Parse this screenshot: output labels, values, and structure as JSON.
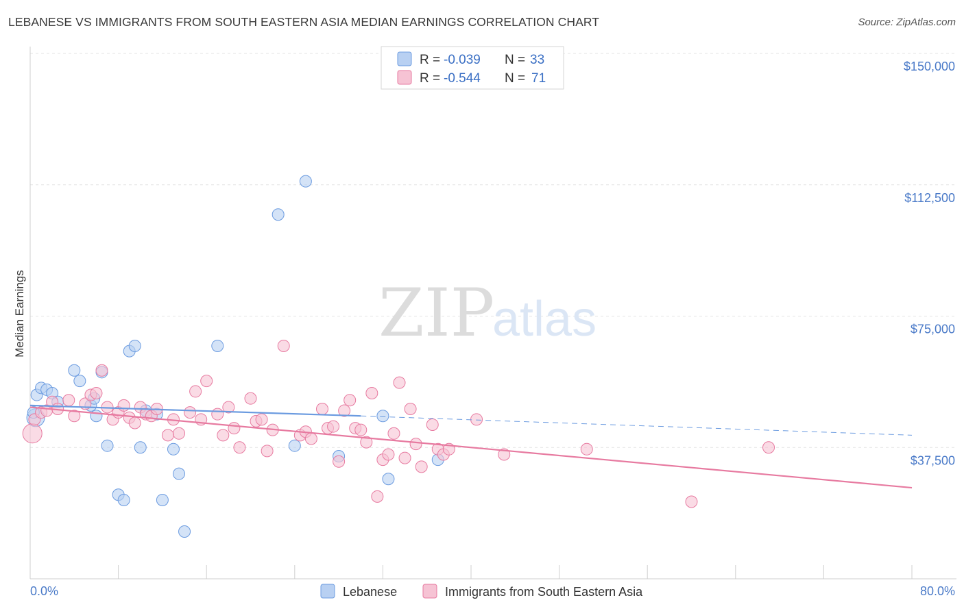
{
  "title": "LEBANESE VS IMMIGRANTS FROM SOUTH EASTERN ASIA MEDIAN EARNINGS CORRELATION CHART",
  "source": "Source: ZipAtlas.com",
  "watermark": {
    "zip": "ZIP",
    "atlas": "atlas"
  },
  "chart_data": {
    "type": "scatter",
    "ylabel": "Median Earnings",
    "xlim": [
      0,
      80
    ],
    "ylim": [
      0,
      155000
    ],
    "y_ticks": [
      {
        "value": 37500,
        "label": "$37,500"
      },
      {
        "value": 75000,
        "label": "$75,000"
      },
      {
        "value": 112500,
        "label": "$112,500"
      },
      {
        "value": 150000,
        "label": "$150,000"
      }
    ],
    "x_tick_labels": {
      "min": "0.0%",
      "max": "80.0%"
    },
    "grid": true,
    "legend": {
      "placement": "top-center",
      "rows": [
        {
          "r_label": "R = ",
          "r_value": "-0.039",
          "n_label": "N = ",
          "n_value": "33"
        },
        {
          "r_label": "R = ",
          "r_value": "-0.544",
          "n_label": "N = ",
          "n_value": "71"
        }
      ]
    },
    "series": [
      {
        "name": "Lebanese",
        "color": "#6b9be0",
        "fill": "#b8d0f2",
        "trend": {
          "x0": 0,
          "y0": 49500,
          "x1": 30,
          "y1": 46500,
          "dash_to_x": 80,
          "dash_to_y": 41000
        },
        "points": [
          [
            0.5,
            46000
          ],
          [
            0.6,
            52500
          ],
          [
            1.0,
            54500
          ],
          [
            1.5,
            54000
          ],
          [
            2.0,
            53000
          ],
          [
            2.5,
            50500
          ],
          [
            4.0,
            59500
          ],
          [
            4.5,
            56500
          ],
          [
            5.5,
            49500
          ],
          [
            5.8,
            51500
          ],
          [
            6.0,
            46500
          ],
          [
            6.5,
            59000
          ],
          [
            7.0,
            38000
          ],
          [
            8.0,
            24000
          ],
          [
            8.5,
            22500
          ],
          [
            9.0,
            65000
          ],
          [
            9.5,
            66500
          ],
          [
            10.0,
            37500
          ],
          [
            10.5,
            48000
          ],
          [
            11.5,
            47000
          ],
          [
            12.0,
            22500
          ],
          [
            13.0,
            37000
          ],
          [
            13.5,
            30000
          ],
          [
            14.0,
            13500
          ],
          [
            17.0,
            66500
          ],
          [
            22.5,
            104000
          ],
          [
            24.0,
            38000
          ],
          [
            25.0,
            113500
          ],
          [
            28.0,
            35000
          ],
          [
            32.0,
            46500
          ],
          [
            32.5,
            28500
          ],
          [
            37.0,
            34000
          ],
          [
            0.3,
            47500
          ]
        ]
      },
      {
        "name": "Immigrants from South Eastern Asia",
        "color": "#e77aa0",
        "fill": "#f6c3d4",
        "trend": {
          "x0": 0,
          "y0": 49000,
          "x1": 80,
          "y1": 26000
        },
        "points": [
          [
            0.2,
            41500
          ],
          [
            0.4,
            45500
          ],
          [
            1.0,
            47500
          ],
          [
            1.5,
            48000
          ],
          [
            2.0,
            50500
          ],
          [
            2.5,
            48500
          ],
          [
            3.5,
            51000
          ],
          [
            4.0,
            46500
          ],
          [
            5.0,
            50000
          ],
          [
            5.5,
            52500
          ],
          [
            6.0,
            53000
          ],
          [
            6.5,
            59500
          ],
          [
            7.0,
            49000
          ],
          [
            7.5,
            45500
          ],
          [
            8.0,
            47500
          ],
          [
            8.5,
            49500
          ],
          [
            9.0,
            46000
          ],
          [
            9.5,
            44500
          ],
          [
            10.0,
            49000
          ],
          [
            10.5,
            47000
          ],
          [
            11.0,
            46500
          ],
          [
            11.5,
            48500
          ],
          [
            12.5,
            41000
          ],
          [
            13.0,
            45500
          ],
          [
            13.5,
            41500
          ],
          [
            14.5,
            47500
          ],
          [
            15.0,
            53500
          ],
          [
            15.5,
            45500
          ],
          [
            16.0,
            56500
          ],
          [
            17.0,
            47000
          ],
          [
            17.5,
            41000
          ],
          [
            18.0,
            49000
          ],
          [
            18.5,
            43000
          ],
          [
            19.0,
            37500
          ],
          [
            20.0,
            51500
          ],
          [
            20.5,
            45000
          ],
          [
            21.0,
            45500
          ],
          [
            21.5,
            36500
          ],
          [
            22.0,
            42500
          ],
          [
            23.0,
            66500
          ],
          [
            24.5,
            41000
          ],
          [
            25.0,
            42000
          ],
          [
            25.5,
            40000
          ],
          [
            26.5,
            48500
          ],
          [
            27.0,
            43000
          ],
          [
            27.5,
            43500
          ],
          [
            28.0,
            33500
          ],
          [
            28.5,
            48000
          ],
          [
            29.0,
            51000
          ],
          [
            29.5,
            43000
          ],
          [
            30.0,
            42500
          ],
          [
            30.5,
            39000
          ],
          [
            31.0,
            53000
          ],
          [
            31.5,
            23500
          ],
          [
            32.0,
            34000
          ],
          [
            32.5,
            35500
          ],
          [
            33.0,
            41500
          ],
          [
            33.5,
            56000
          ],
          [
            34.0,
            34500
          ],
          [
            34.5,
            48500
          ],
          [
            35.0,
            38500
          ],
          [
            35.5,
            32000
          ],
          [
            36.5,
            44000
          ],
          [
            37.0,
            37000
          ],
          [
            37.5,
            35500
          ],
          [
            38.0,
            37000
          ],
          [
            40.5,
            45500
          ],
          [
            50.5,
            37000
          ],
          [
            60.0,
            22000
          ],
          [
            67.0,
            37500
          ],
          [
            43.0,
            35500
          ]
        ]
      }
    ]
  },
  "bottom_legend": [
    {
      "label": "Lebanese"
    },
    {
      "label": "Immigrants from South Eastern Asia"
    }
  ]
}
